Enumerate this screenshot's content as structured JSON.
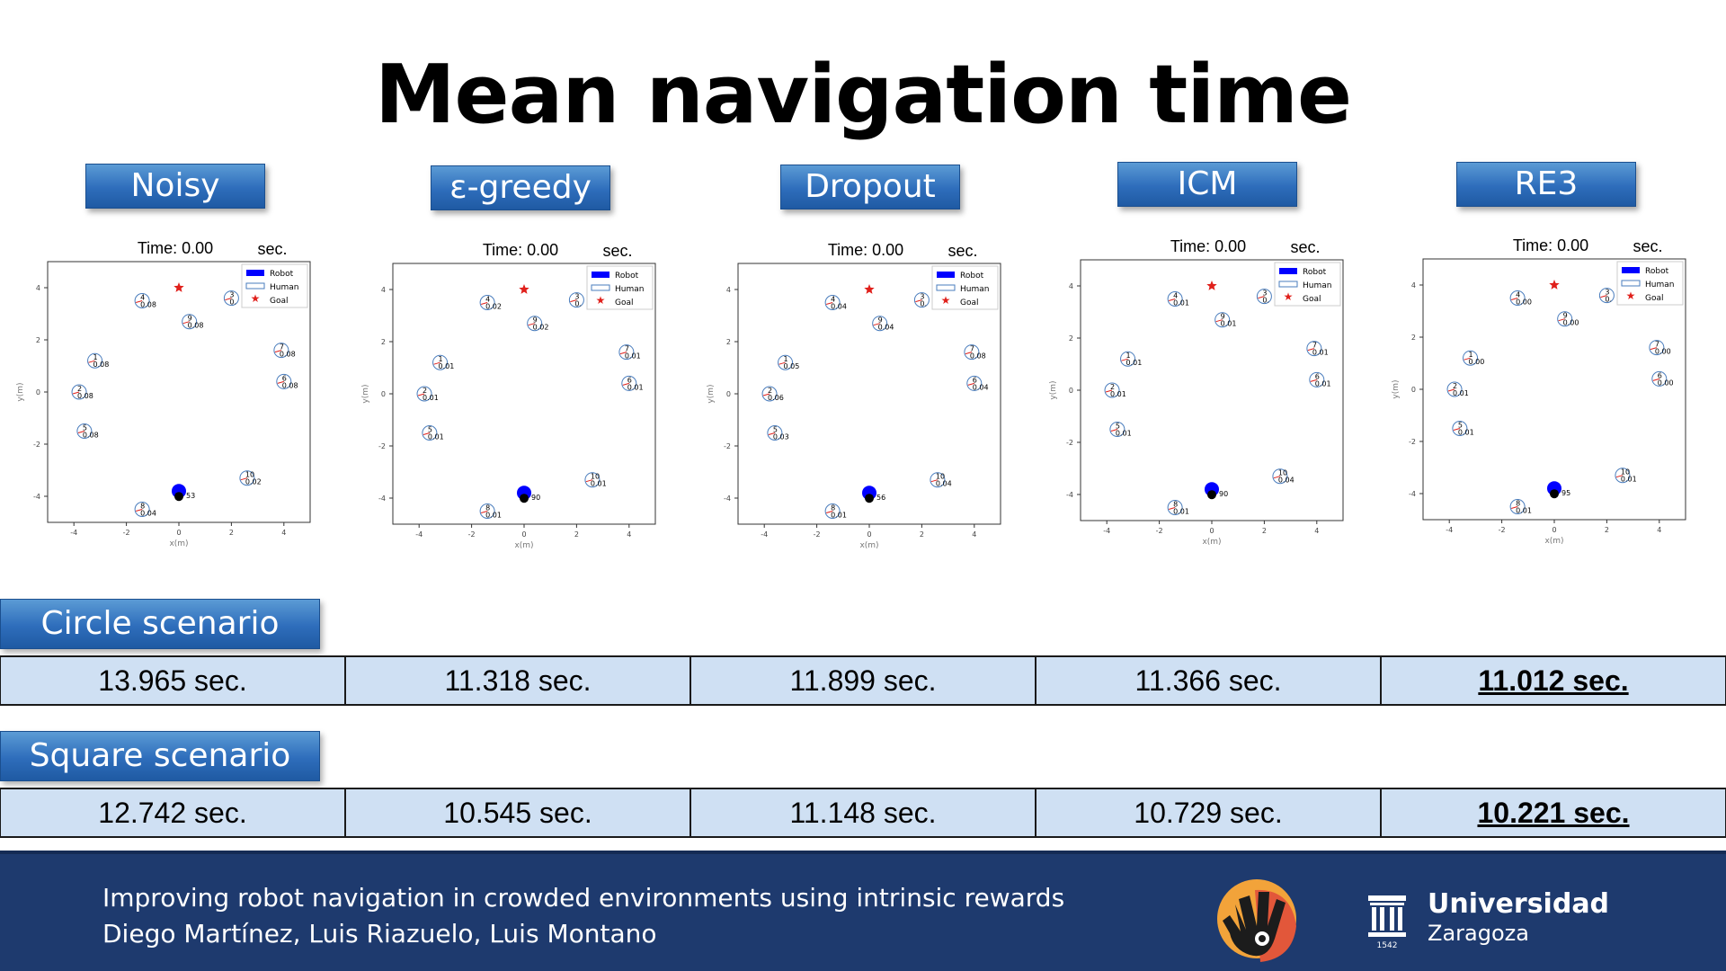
{
  "title": "Mean navigation time",
  "methods": [
    "Noisy",
    "ε-greedy",
    "Dropout",
    "ICM",
    "RE3"
  ],
  "scenarios": {
    "circle": {
      "label": "Circle scenario",
      "times": [
        "13.965 sec.",
        "11.318 sec.",
        "11.899 sec.",
        "11.366 sec.",
        "11.012 sec."
      ],
      "best_index": 4
    },
    "square": {
      "label": "Square scenario",
      "times": [
        "12.742 sec.",
        "10.545 sec.",
        "11.148 sec.",
        "10.729 sec.",
        "10.221 sec."
      ],
      "best_index": 4
    }
  },
  "footer": {
    "line1": "Improving robot navigation in crowded environments using intrinsic rewards",
    "line2": "Diego Martínez, Luis Riazuelo, Luis Montano",
    "university": "Universidad",
    "city": "Zaragoza",
    "year": "1542"
  },
  "colors": {
    "title_bar": "#2e6dbb",
    "table_cell": "#cfe0f3",
    "footer": "#1e3a6e",
    "robot": "#0000ff",
    "goal": "#e0201b"
  },
  "chart_data": [
    {
      "type": "scatter",
      "method": "Noisy",
      "time_label": "Time: 0.00",
      "time_unit": "sec.",
      "xlabel": "x(m)",
      "ylabel": "y(m)",
      "xlim": [
        -5,
        5
      ],
      "ylim": [
        -5,
        5
      ],
      "xticks": [
        -4,
        -2,
        0,
        2,
        4
      ],
      "yticks": [
        -4,
        -2,
        0,
        2,
        4
      ],
      "legend": [
        "Robot",
        "Human",
        "Goal"
      ],
      "legend_position": "top-right",
      "goal": [
        0,
        4
      ],
      "robot": {
        "x": 0,
        "y": -3.8,
        "value": "53"
      },
      "humans": [
        {
          "id": "1",
          "x": -3.2,
          "y": 1.2,
          "value": "0.08"
        },
        {
          "id": "2",
          "x": -3.8,
          "y": 0,
          "value": "0.08"
        },
        {
          "id": "3",
          "x": 2,
          "y": 3.6,
          "value": "0."
        },
        {
          "id": "4",
          "x": -1.4,
          "y": 3.5,
          "value": "0.08"
        },
        {
          "id": "5",
          "x": -3.6,
          "y": -1.5,
          "value": "0.08"
        },
        {
          "id": "6",
          "x": 4,
          "y": 0.4,
          "value": "0.08"
        },
        {
          "id": "7",
          "x": 3.9,
          "y": 1.6,
          "value": "0.08"
        },
        {
          "id": "8",
          "x": -1.4,
          "y": -4.5,
          "value": "0.04"
        },
        {
          "id": "9",
          "x": 0.4,
          "y": 2.7,
          "value": "0.08"
        },
        {
          "id": "10",
          "x": 2.6,
          "y": -3.3,
          "value": "0.02"
        }
      ]
    },
    {
      "type": "scatter",
      "method": "ε-greedy",
      "time_label": "Time: 0.00",
      "time_unit": "sec.",
      "xlabel": "x(m)",
      "ylabel": "y(m)",
      "xlim": [
        -5,
        5
      ],
      "ylim": [
        -5,
        5
      ],
      "xticks": [
        -4,
        -2,
        0,
        2,
        4
      ],
      "yticks": [
        -4,
        -2,
        0,
        2,
        4
      ],
      "legend": [
        "Robot",
        "Human",
        "Goal"
      ],
      "legend_position": "top-right",
      "goal": [
        0,
        4
      ],
      "robot": {
        "x": 0,
        "y": -3.8,
        "value": "90"
      },
      "humans": [
        {
          "id": "1",
          "x": -3.2,
          "y": 1.2,
          "value": "0.01"
        },
        {
          "id": "2",
          "x": -3.8,
          "y": 0,
          "value": "0.01"
        },
        {
          "id": "3",
          "x": 2,
          "y": 3.6,
          "value": "0."
        },
        {
          "id": "4",
          "x": -1.4,
          "y": 3.5,
          "value": "0.02"
        },
        {
          "id": "5",
          "x": -3.6,
          "y": -1.5,
          "value": "0.01"
        },
        {
          "id": "6",
          "x": 4,
          "y": 0.4,
          "value": "0.01"
        },
        {
          "id": "7",
          "x": 3.9,
          "y": 1.6,
          "value": "0.01"
        },
        {
          "id": "8",
          "x": -1.4,
          "y": -4.5,
          "value": "0.01"
        },
        {
          "id": "9",
          "x": 0.4,
          "y": 2.7,
          "value": "0.02"
        },
        {
          "id": "10",
          "x": 2.6,
          "y": -3.3,
          "value": "0.01"
        }
      ]
    },
    {
      "type": "scatter",
      "method": "Dropout",
      "time_label": "Time: 0.00",
      "time_unit": "sec.",
      "xlabel": "x(m)",
      "ylabel": "y(m)",
      "xlim": [
        -5,
        5
      ],
      "ylim": [
        -5,
        5
      ],
      "xticks": [
        -4,
        -2,
        0,
        2,
        4
      ],
      "yticks": [
        -4,
        -2,
        0,
        2,
        4
      ],
      "legend": [
        "Robot",
        "Human",
        "Goal"
      ],
      "legend_position": "top-right",
      "goal": [
        0,
        4
      ],
      "robot": {
        "x": 0,
        "y": -3.8,
        "value": "56"
      },
      "humans": [
        {
          "id": "1",
          "x": -3.2,
          "y": 1.2,
          "value": "0.05"
        },
        {
          "id": "2",
          "x": -3.8,
          "y": 0,
          "value": "0.06"
        },
        {
          "id": "3",
          "x": 2,
          "y": 3.6,
          "value": "0."
        },
        {
          "id": "4",
          "x": -1.4,
          "y": 3.5,
          "value": "0.04"
        },
        {
          "id": "5",
          "x": -3.6,
          "y": -1.5,
          "value": "0.03"
        },
        {
          "id": "6",
          "x": 4,
          "y": 0.4,
          "value": "0.04"
        },
        {
          "id": "7",
          "x": 3.9,
          "y": 1.6,
          "value": "0.08"
        },
        {
          "id": "8",
          "x": -1.4,
          "y": -4.5,
          "value": "0.01"
        },
        {
          "id": "9",
          "x": 0.4,
          "y": 2.7,
          "value": "0.04"
        },
        {
          "id": "10",
          "x": 2.6,
          "y": -3.3,
          "value": "0.04"
        }
      ]
    },
    {
      "type": "scatter",
      "method": "ICM",
      "time_label": "Time: 0.00",
      "time_unit": "sec.",
      "xlabel": "x(m)",
      "ylabel": "y(m)",
      "xlim": [
        -5,
        5
      ],
      "ylim": [
        -5,
        5
      ],
      "xticks": [
        -4,
        -2,
        0,
        2,
        4
      ],
      "yticks": [
        -4,
        -2,
        0,
        2,
        4
      ],
      "legend": [
        "Robot",
        "Human",
        "Goal"
      ],
      "legend_position": "top-right",
      "goal": [
        0,
        4
      ],
      "robot": {
        "x": 0,
        "y": -3.8,
        "value": "90"
      },
      "humans": [
        {
          "id": "1",
          "x": -3.2,
          "y": 1.2,
          "value": "0.01"
        },
        {
          "id": "2",
          "x": -3.8,
          "y": 0,
          "value": "0.01"
        },
        {
          "id": "3",
          "x": 2,
          "y": 3.6,
          "value": "0."
        },
        {
          "id": "4",
          "x": -1.4,
          "y": 3.5,
          "value": "0.01"
        },
        {
          "id": "5",
          "x": -3.6,
          "y": -1.5,
          "value": "0.01"
        },
        {
          "id": "6",
          "x": 4,
          "y": 0.4,
          "value": "0.01"
        },
        {
          "id": "7",
          "x": 3.9,
          "y": 1.6,
          "value": "0.01"
        },
        {
          "id": "8",
          "x": -1.4,
          "y": -4.5,
          "value": "0.01"
        },
        {
          "id": "9",
          "x": 0.4,
          "y": 2.7,
          "value": "0.01"
        },
        {
          "id": "10",
          "x": 2.6,
          "y": -3.3,
          "value": "0.04"
        }
      ]
    },
    {
      "type": "scatter",
      "method": "RE3",
      "time_label": "Time: 0.00",
      "time_unit": "sec.",
      "xlabel": "x(m)",
      "ylabel": "y(m)",
      "xlim": [
        -5,
        5
      ],
      "ylim": [
        -5,
        5
      ],
      "xticks": [
        -4,
        -2,
        0,
        2,
        4
      ],
      "yticks": [
        -4,
        -2,
        0,
        2,
        4
      ],
      "legend": [
        "Robot",
        "Human",
        "Goal"
      ],
      "legend_position": "top-right",
      "goal": [
        0,
        4
      ],
      "robot": {
        "x": 0,
        "y": -3.8,
        "value": "95"
      },
      "humans": [
        {
          "id": "1",
          "x": -3.2,
          "y": 1.2,
          "value": "0.00"
        },
        {
          "id": "2",
          "x": -3.8,
          "y": 0,
          "value": "0.01"
        },
        {
          "id": "3",
          "x": 2,
          "y": 3.6,
          "value": "0."
        },
        {
          "id": "4",
          "x": -1.4,
          "y": 3.5,
          "value": "0.00"
        },
        {
          "id": "5",
          "x": -3.6,
          "y": -1.5,
          "value": "0.01"
        },
        {
          "id": "6",
          "x": 4,
          "y": 0.4,
          "value": "0.00"
        },
        {
          "id": "7",
          "x": 3.9,
          "y": 1.6,
          "value": "0.00"
        },
        {
          "id": "8",
          "x": -1.4,
          "y": -4.5,
          "value": "0.01"
        },
        {
          "id": "9",
          "x": 0.4,
          "y": 2.7,
          "value": "0.00"
        },
        {
          "id": "10",
          "x": 2.6,
          "y": -3.3,
          "value": "0.01"
        }
      ]
    }
  ]
}
